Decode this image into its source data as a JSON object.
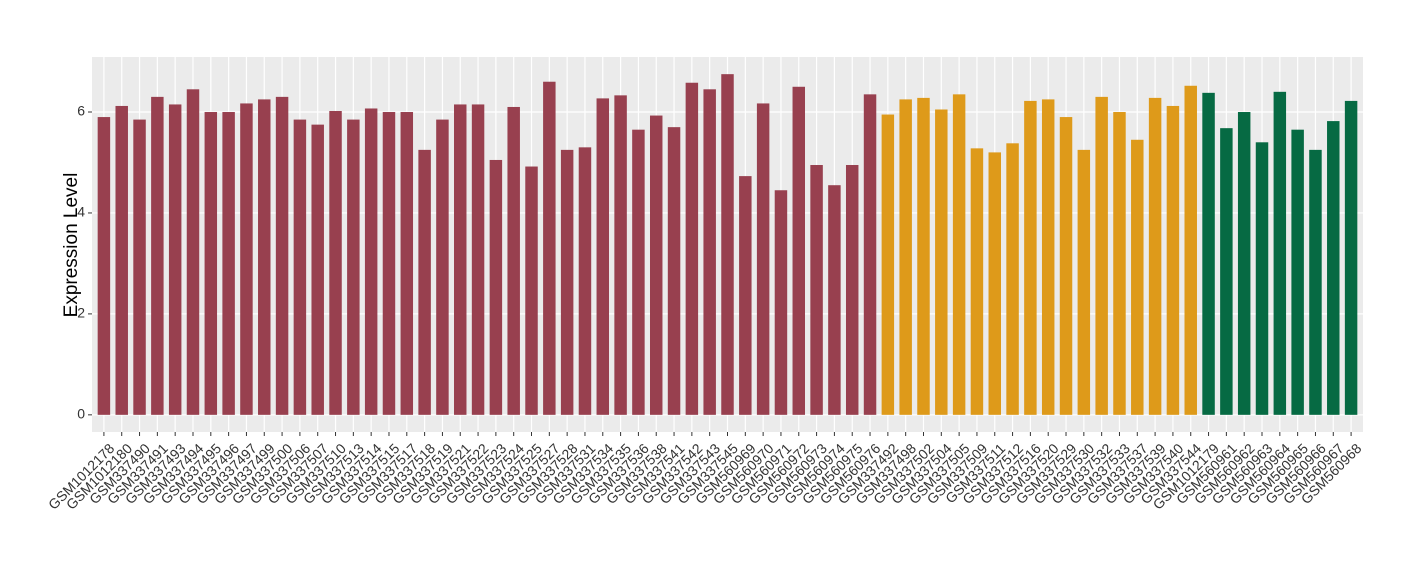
{
  "chart_data": {
    "type": "bar",
    "y_label": "Expression Level",
    "categories": [
      "GSM1012178",
      "GSM1012180",
      "GSM337490",
      "GSM337491",
      "GSM337493",
      "GSM337494",
      "GSM337495",
      "GSM337496",
      "GSM337497",
      "GSM337499",
      "GSM337500",
      "GSM337506",
      "GSM337507",
      "GSM337510",
      "GSM337513",
      "GSM337514",
      "GSM337515",
      "GSM337517",
      "GSM337518",
      "GSM337519",
      "GSM337521",
      "GSM337522",
      "GSM337523",
      "GSM337524",
      "GSM337525",
      "GSM337527",
      "GSM337528",
      "GSM337531",
      "GSM337534",
      "GSM337535",
      "GSM337536",
      "GSM337538",
      "GSM337541",
      "GSM337542",
      "GSM337543",
      "GSM337545",
      "GSM560969",
      "GSM560970",
      "GSM560971",
      "GSM560972",
      "GSM560973",
      "GSM560974",
      "GSM560975",
      "GSM560976",
      "GSM337492",
      "GSM337498",
      "GSM337502",
      "GSM337504",
      "GSM337505",
      "GSM337509",
      "GSM337511",
      "GSM337512",
      "GSM337516",
      "GSM337520",
      "GSM337529",
      "GSM337530",
      "GSM337532",
      "GSM337533",
      "GSM337537",
      "GSM337539",
      "GSM337540",
      "GSM337544",
      "GSM1012179",
      "GSM560961",
      "GSM560962",
      "GSM560963",
      "GSM560964",
      "GSM560965",
      "GSM560966",
      "GSM560967",
      "GSM560968"
    ],
    "values": [
      5.9,
      6.12,
      5.85,
      6.3,
      6.15,
      6.45,
      6.0,
      6.0,
      6.17,
      6.25,
      6.3,
      5.85,
      5.75,
      6.02,
      5.85,
      6.07,
      6.0,
      6.0,
      5.25,
      5.85,
      6.15,
      6.15,
      5.05,
      6.1,
      4.92,
      6.6,
      5.25,
      5.3,
      6.27,
      6.33,
      5.65,
      5.93,
      5.7,
      6.58,
      6.45,
      6.75,
      4.73,
      6.17,
      4.45,
      6.5,
      4.95,
      4.55,
      4.95,
      6.35,
      5.95,
      6.25,
      6.28,
      6.05,
      6.35,
      5.28,
      5.2,
      5.38,
      6.22,
      6.25,
      5.9,
      5.25,
      6.3,
      6.0,
      5.45,
      6.28,
      6.12,
      6.52,
      6.38,
      5.68,
      6.0,
      5.4,
      6.4,
      5.65,
      5.25,
      5.82,
      6.22
    ],
    "colors": [
      "#98404f",
      "#98404f",
      "#98404f",
      "#98404f",
      "#98404f",
      "#98404f",
      "#98404f",
      "#98404f",
      "#98404f",
      "#98404f",
      "#98404f",
      "#98404f",
      "#98404f",
      "#98404f",
      "#98404f",
      "#98404f",
      "#98404f",
      "#98404f",
      "#98404f",
      "#98404f",
      "#98404f",
      "#98404f",
      "#98404f",
      "#98404f",
      "#98404f",
      "#98404f",
      "#98404f",
      "#98404f",
      "#98404f",
      "#98404f",
      "#98404f",
      "#98404f",
      "#98404f",
      "#98404f",
      "#98404f",
      "#98404f",
      "#98404f",
      "#98404f",
      "#98404f",
      "#98404f",
      "#98404f",
      "#98404f",
      "#98404f",
      "#98404f",
      "#de9a1a",
      "#de9a1a",
      "#de9a1a",
      "#de9a1a",
      "#de9a1a",
      "#de9a1a",
      "#de9a1a",
      "#de9a1a",
      "#de9a1a",
      "#de9a1a",
      "#de9a1a",
      "#de9a1a",
      "#de9a1a",
      "#de9a1a",
      "#de9a1a",
      "#de9a1a",
      "#de9a1a",
      "#de9a1a",
      "#066a43",
      "#066a43",
      "#066a43",
      "#066a43",
      "#066a43",
      "#066a43",
      "#066a43",
      "#066a43",
      "#066a43"
    ],
    "ylim": [
      -0.34,
      7.09
    ],
    "yticks": [
      0,
      2,
      4,
      6
    ],
    "grid": true
  }
}
